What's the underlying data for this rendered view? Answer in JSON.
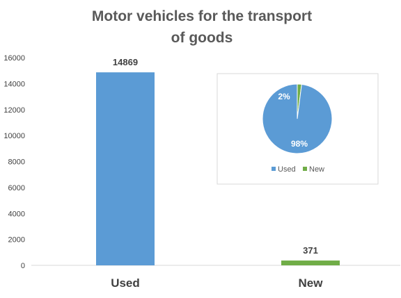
{
  "chart_data": [
    {
      "type": "bar",
      "title_lines": [
        "Motor vehicles for the transport",
        "of goods"
      ],
      "categories": [
        "Used",
        "New"
      ],
      "values": [
        14869,
        371
      ],
      "ylim": [
        0,
        16000
      ],
      "yticks": [
        "0",
        "2000",
        "4000",
        "6000",
        "8000",
        "10000",
        "12000",
        "14000",
        "16000"
      ],
      "grid": false,
      "colors": [
        "#5b9bd5",
        "#70ad47"
      ]
    },
    {
      "type": "pie",
      "categories": [
        "Used",
        "New"
      ],
      "values": [
        98,
        2
      ],
      "labels": [
        "98%",
        "2%"
      ],
      "legend_position": "bottom",
      "colors": [
        "#5b9bd5",
        "#70ad47"
      ]
    }
  ]
}
